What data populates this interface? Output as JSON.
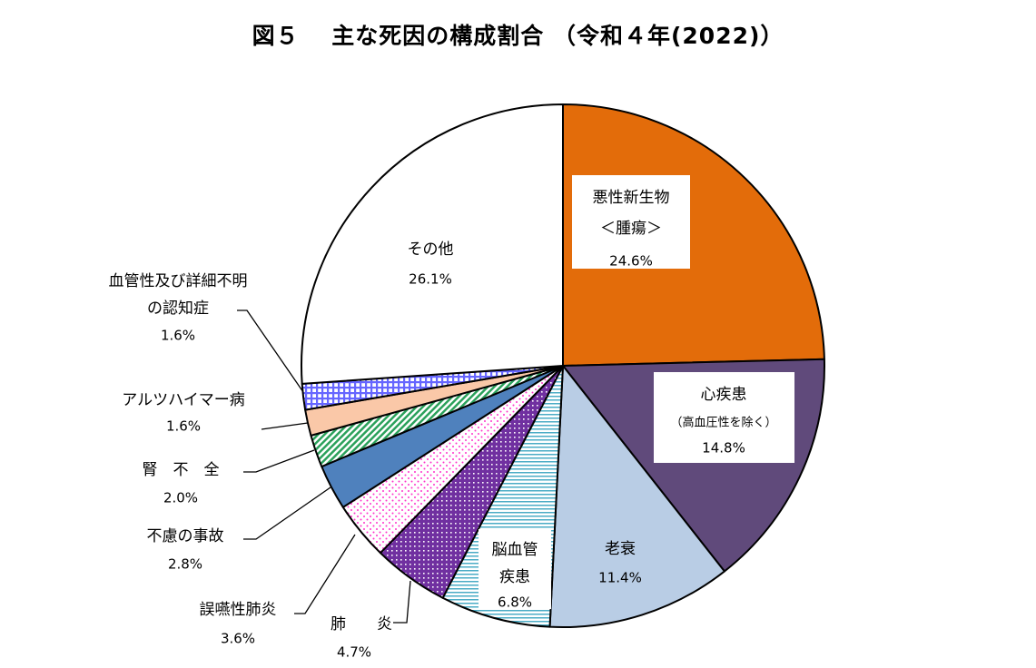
{
  "chart_data": {
    "type": "pie",
    "title": "図５　 主な死因の構成割合 （令和４年(2022)）",
    "start_angle_deg": 0,
    "direction": "clockwise",
    "slices": [
      {
        "id": "cancer",
        "lines": [
          "悪性新生物",
          "＜腫瘍＞"
        ],
        "value": 24.6,
        "value_label": "24.6%",
        "color": "#E36C0A",
        "pattern": "solid"
      },
      {
        "id": "heart",
        "lines": [
          "心疾患",
          "（高血圧性を除く）"
        ],
        "value": 14.8,
        "value_label": "14.8%",
        "color": "#604A7B",
        "pattern": "solid"
      },
      {
        "id": "senility",
        "lines": [
          "老衰"
        ],
        "value": 11.4,
        "value_label": "11.4%",
        "color": "#B9CDE5",
        "pattern": "solid"
      },
      {
        "id": "cerebro",
        "lines": [
          "脳血管",
          "疾患"
        ],
        "value": 6.8,
        "value_label": "6.8%",
        "color": "#4BACC6",
        "pattern": "hlines"
      },
      {
        "id": "pneumonia",
        "lines": [
          "肺　　炎"
        ],
        "value": 4.7,
        "value_label": "4.7%",
        "color": "#7030A0",
        "pattern": "dots-dark"
      },
      {
        "id": "aspiration",
        "lines": [
          "誤嚥性肺炎"
        ],
        "value": 3.6,
        "value_label": "3.6%",
        "color": "#FF66FF",
        "pattern": "dots-light"
      },
      {
        "id": "accident",
        "lines": [
          "不慮の事故"
        ],
        "value": 2.8,
        "value_label": "2.8%",
        "color": "#4F81BD",
        "pattern": "solid"
      },
      {
        "id": "kidney",
        "lines": [
          "腎　不　全"
        ],
        "value": 2.0,
        "value_label": "2.0%",
        "color": "#2BA15B",
        "pattern": "diag"
      },
      {
        "id": "alzheimer",
        "lines": [
          "アルツハイマー病"
        ],
        "value": 1.6,
        "value_label": "1.6%",
        "color": "#FAC8A8",
        "pattern": "solid"
      },
      {
        "id": "dementia",
        "lines": [
          "血管性及び詳細不明",
          "の認知症"
        ],
        "value": 1.6,
        "value_label": "1.6%",
        "color": "#6666FF",
        "pattern": "grid"
      },
      {
        "id": "other",
        "lines": [
          "その他"
        ],
        "value": 26.1,
        "value_label": "26.1%",
        "color": "#FFFFFF",
        "pattern": "solid"
      }
    ]
  }
}
